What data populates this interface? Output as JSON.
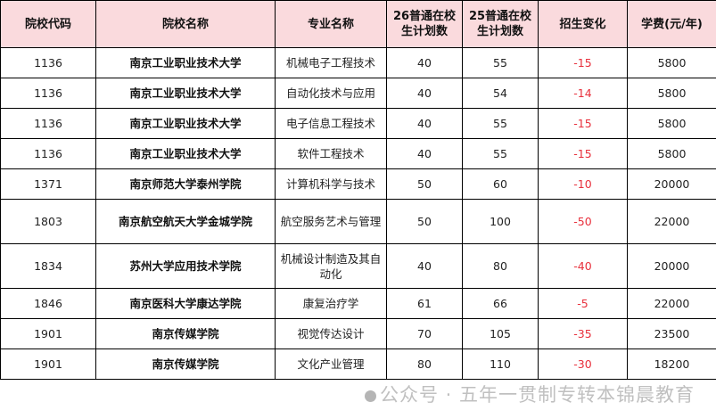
{
  "headers": [
    "院校代码",
    "院校名称",
    "专业名称",
    "26普通在校生计划数",
    "25普通在校生计划数",
    "招生变化",
    "学费(元/年)"
  ],
  "rows": [
    {
      "code": "1136",
      "school": "南京工业职业技术大学",
      "major": "机械电子工程技术",
      "p26": "40",
      "p25": "55",
      "change": "-15",
      "fee": "5800"
    },
    {
      "code": "1136",
      "school": "南京工业职业技术大学",
      "major": "自动化技术与应用",
      "p26": "40",
      "p25": "54",
      "change": "-14",
      "fee": "5800"
    },
    {
      "code": "1136",
      "school": "南京工业职业技术大学",
      "major": "电子信息工程技术",
      "p26": "40",
      "p25": "55",
      "change": "-15",
      "fee": "5800"
    },
    {
      "code": "1136",
      "school": "南京工业职业技术大学",
      "major": "软件工程技术",
      "p26": "40",
      "p25": "55",
      "change": "-15",
      "fee": "5800"
    },
    {
      "code": "1371",
      "school": "南京师范大学泰州学院",
      "major": "计算机科学与技术",
      "p26": "50",
      "p25": "60",
      "change": "-10",
      "fee": "20000"
    },
    {
      "code": "1803",
      "school": "南京航空航天大学金城学院",
      "major": "航空服务艺术与管理",
      "p26": "50",
      "p25": "100",
      "change": "-50",
      "fee": "22000"
    },
    {
      "code": "1834",
      "school": "苏州大学应用技术学院",
      "major": "机械设计制造及其自动化",
      "p26": "40",
      "p25": "80",
      "change": "-40",
      "fee": "20000"
    },
    {
      "code": "1846",
      "school": "南京医科大学康达学院",
      "major": "康复治疗学",
      "p26": "61",
      "p25": "66",
      "change": "-5",
      "fee": "22000"
    },
    {
      "code": "1901",
      "school": "南京传媒学院",
      "major": "视觉传达设计",
      "p26": "70",
      "p25": "105",
      "change": "-35",
      "fee": "23500"
    },
    {
      "code": "1901",
      "school": "南京传媒学院",
      "major": "文化产业管理",
      "p26": "80",
      "p25": "110",
      "change": "-30",
      "fee": "18200"
    }
  ],
  "tall_rows": [
    5,
    6
  ],
  "watermark": "公众号 · 五年一贯制专转本锦晨教育",
  "colors": {
    "header_bg": "#fadadd",
    "change_text": "#e8303c"
  }
}
